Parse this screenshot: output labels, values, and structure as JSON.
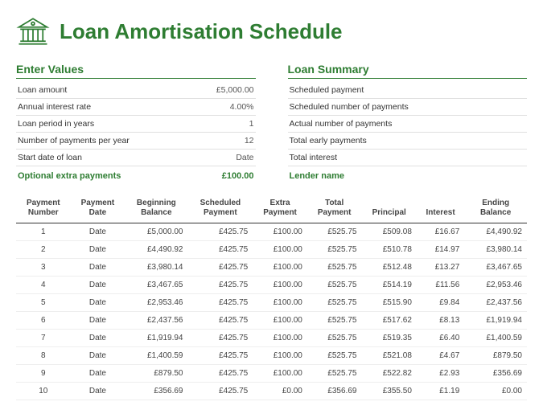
{
  "title": "Loan Amortisation Schedule",
  "sections": {
    "enterValues": {
      "heading": "Enter Values",
      "rows": [
        {
          "label": "Loan amount",
          "value": "£5,000.00"
        },
        {
          "label": "Annual interest rate",
          "value": "4.00%"
        },
        {
          "label": "Loan period in years",
          "value": "1"
        },
        {
          "label": "Number of payments per year",
          "value": "12"
        },
        {
          "label": "Start date of loan",
          "value": "Date"
        }
      ],
      "extraLabel": "Optional extra payments",
      "extraValue": "£100.00"
    },
    "loanSummary": {
      "heading": "Loan Summary",
      "rows": [
        {
          "label": "Scheduled payment",
          "value": ""
        },
        {
          "label": "Scheduled number of payments",
          "value": ""
        },
        {
          "label": "Actual number of payments",
          "value": ""
        },
        {
          "label": "Total early payments",
          "value": ""
        },
        {
          "label": "Total interest",
          "value": ""
        }
      ],
      "lenderLabel": "Lender name",
      "lenderValue": ""
    }
  },
  "schedule": {
    "columns": [
      "Payment\nNumber",
      "Payment\nDate",
      "Beginning\nBalance",
      "Scheduled\nPayment",
      "Extra\nPayment",
      "Total\nPayment",
      "Principal",
      "Interest",
      "Ending\nBalance"
    ],
    "rows": [
      [
        "1",
        "Date",
        "£5,000.00",
        "£425.75",
        "£100.00",
        "£525.75",
        "£509.08",
        "£16.67",
        "£4,490.92"
      ],
      [
        "2",
        "Date",
        "£4,490.92",
        "£425.75",
        "£100.00",
        "£525.75",
        "£510.78",
        "£14.97",
        "£3,980.14"
      ],
      [
        "3",
        "Date",
        "£3,980.14",
        "£425.75",
        "£100.00",
        "£525.75",
        "£512.48",
        "£13.27",
        "£3,467.65"
      ],
      [
        "4",
        "Date",
        "£3,467.65",
        "£425.75",
        "£100.00",
        "£525.75",
        "£514.19",
        "£11.56",
        "£2,953.46"
      ],
      [
        "5",
        "Date",
        "£2,953.46",
        "£425.75",
        "£100.00",
        "£525.75",
        "£515.90",
        "£9.84",
        "£2,437.56"
      ],
      [
        "6",
        "Date",
        "£2,437.56",
        "£425.75",
        "£100.00",
        "£525.75",
        "£517.62",
        "£8.13",
        "£1,919.94"
      ],
      [
        "7",
        "Date",
        "£1,919.94",
        "£425.75",
        "£100.00",
        "£525.75",
        "£519.35",
        "£6.40",
        "£1,400.59"
      ],
      [
        "8",
        "Date",
        "£1,400.59",
        "£425.75",
        "£100.00",
        "£525.75",
        "£521.08",
        "£4.67",
        "£879.50"
      ],
      [
        "9",
        "Date",
        "£879.50",
        "£425.75",
        "£100.00",
        "£525.75",
        "£522.82",
        "£2.93",
        "£356.69"
      ],
      [
        "10",
        "Date",
        "£356.69",
        "£425.75",
        "£0.00",
        "£356.69",
        "£355.50",
        "£1.19",
        "£0.00"
      ]
    ]
  },
  "colors": {
    "accent": "#2e7d32",
    "ruleLight": "#e0e0e0",
    "ruleDark": "#333333"
  }
}
